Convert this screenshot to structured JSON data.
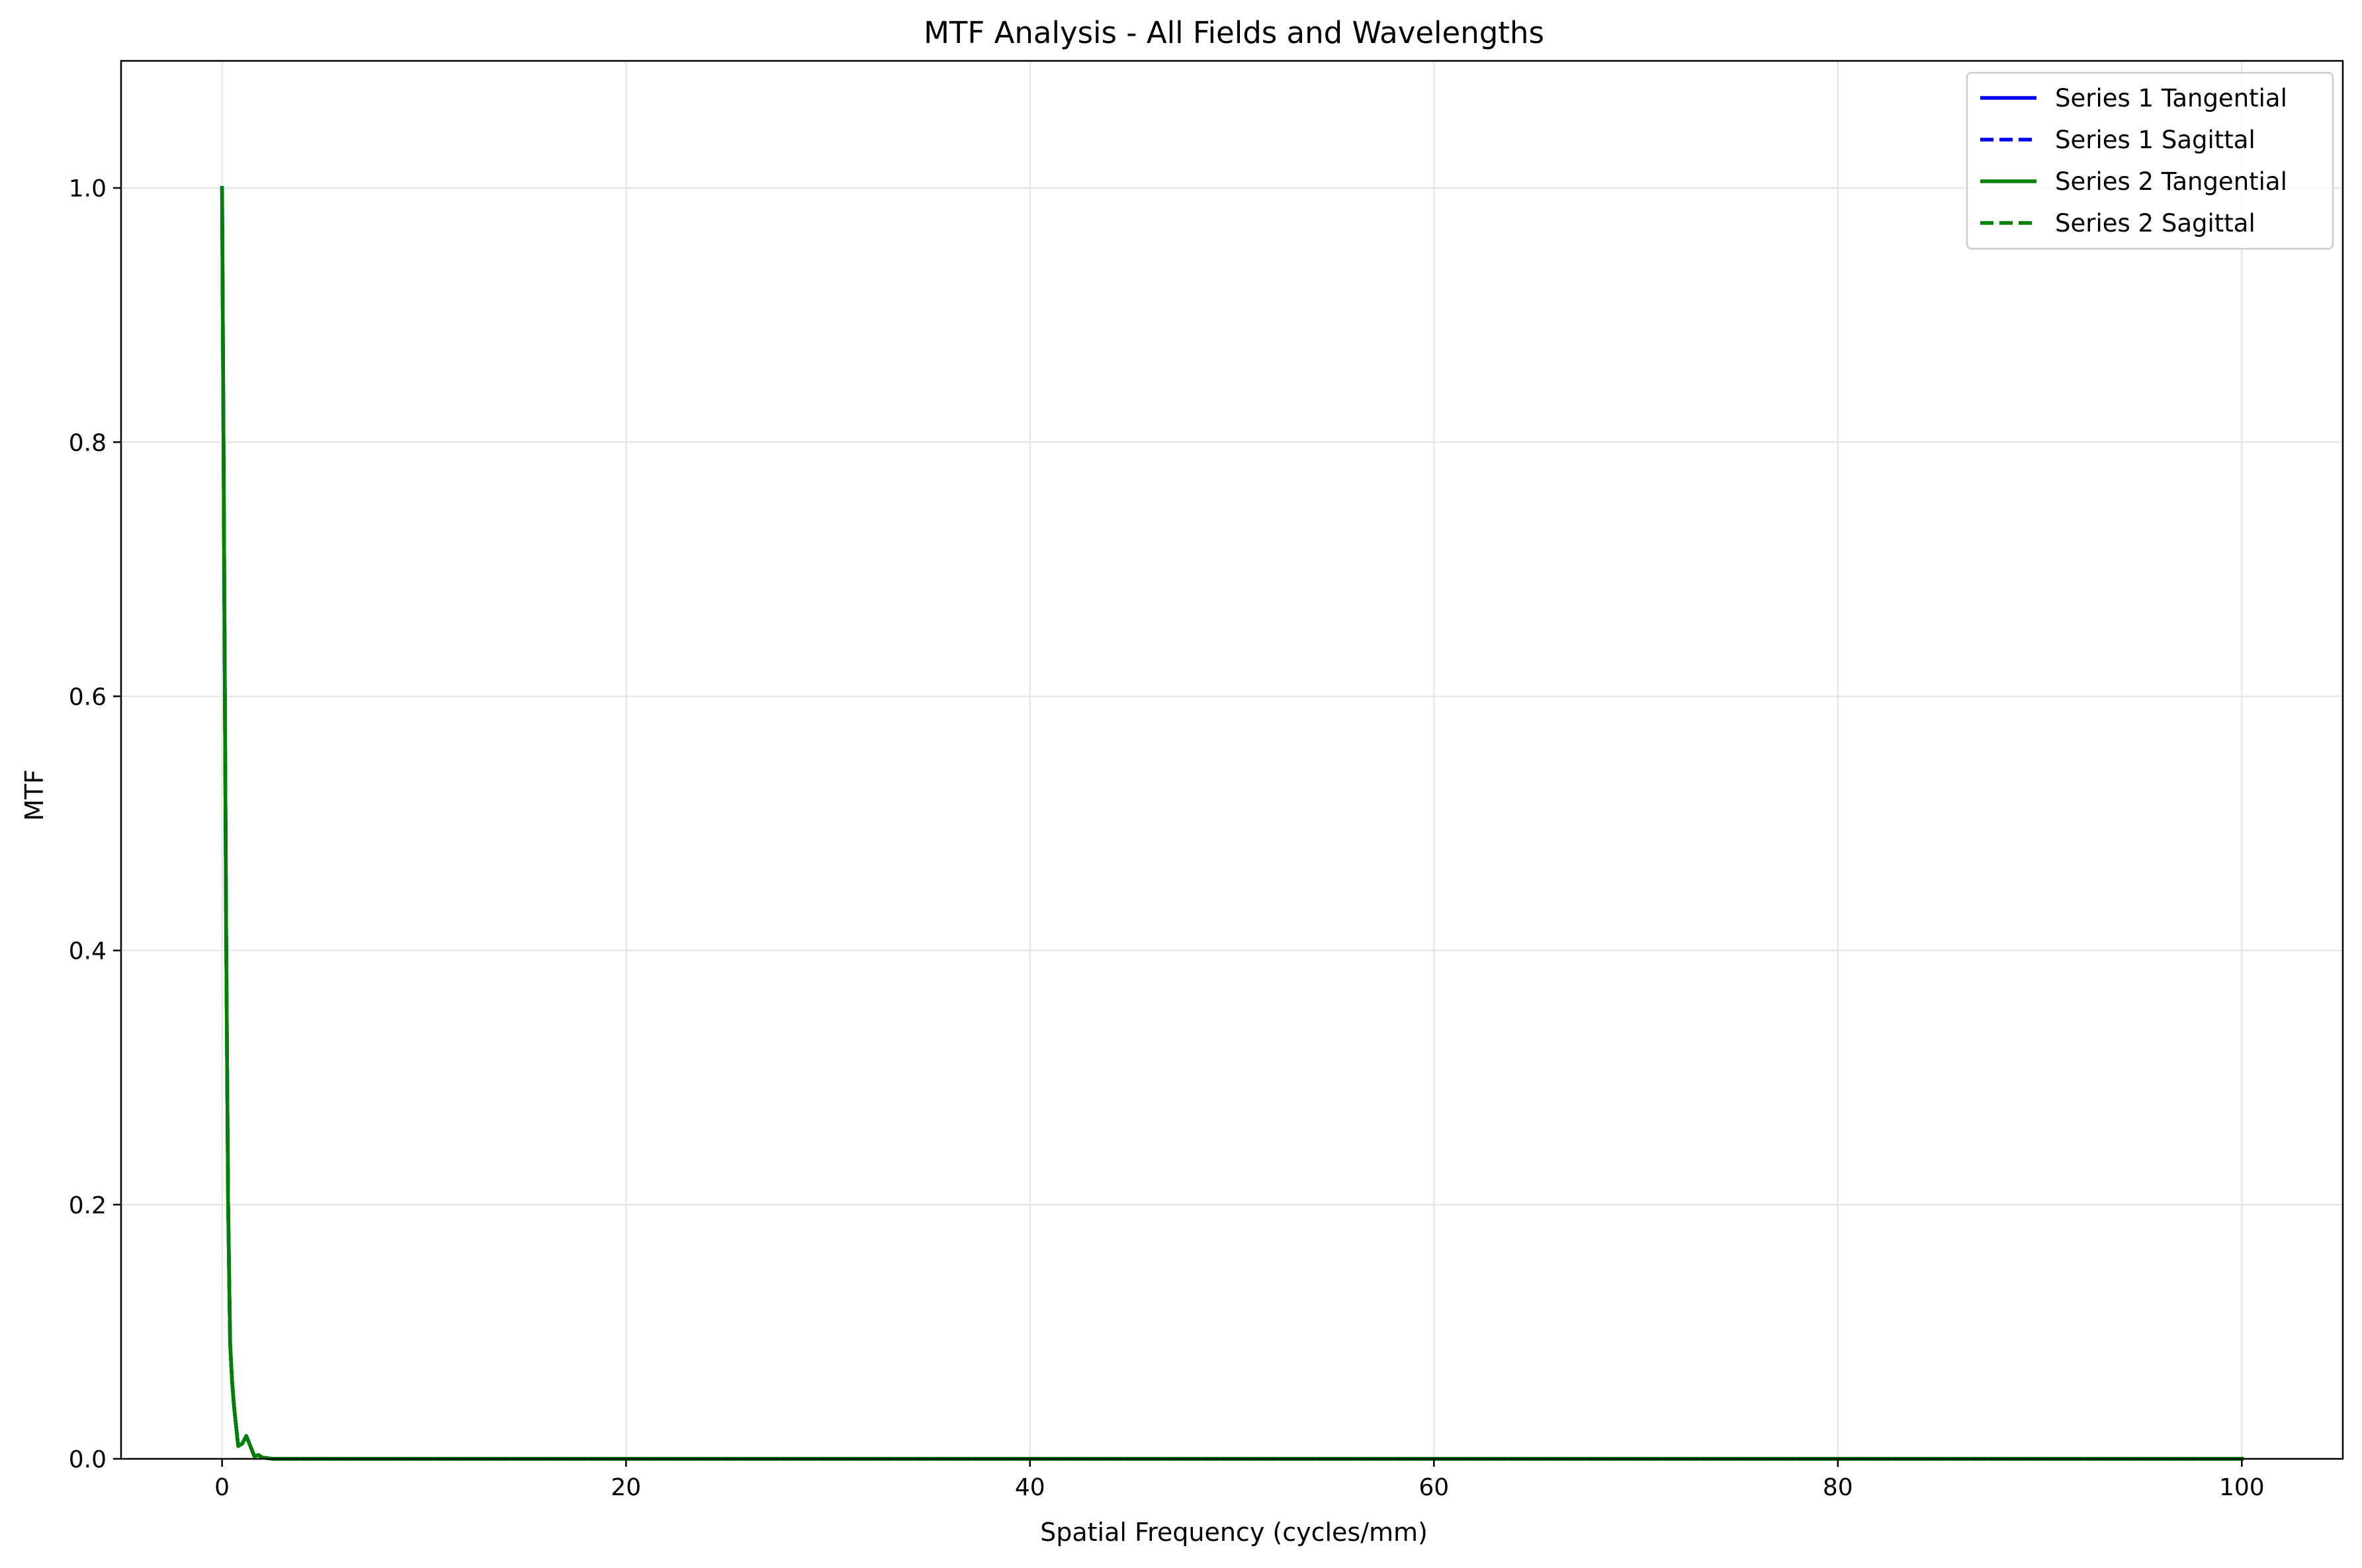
{
  "chart_data": {
    "type": "line",
    "title": "MTF Analysis - All Fields and Wavelengths",
    "xlabel": "Spatial Frequency (cycles/mm)",
    "ylabel": "MTF",
    "xlim": [
      -5,
      105
    ],
    "ylim": [
      0,
      1.1
    ],
    "x_ticks": [
      0,
      20,
      40,
      60,
      80,
      100
    ],
    "y_ticks": [
      0.0,
      0.2,
      0.4,
      0.6,
      0.8,
      1.0
    ],
    "x_tick_labels": [
      "0",
      "20",
      "40",
      "60",
      "80",
      "100"
    ],
    "y_tick_labels": [
      "0.0",
      "0.2",
      "0.4",
      "0.6",
      "0.8",
      "1.0"
    ],
    "grid": true,
    "legend_position": "top-right",
    "series": [
      {
        "name": "Series 1 Tangential",
        "color": "#0000ff",
        "dash": "solid",
        "x": [
          0,
          0.1,
          0.2,
          0.3,
          0.4,
          0.5,
          0.6,
          0.8,
          1.0,
          1.2,
          1.4,
          1.6,
          1.8,
          2.0,
          2.5,
          3,
          5,
          10,
          20,
          40,
          60,
          80,
          100
        ],
        "y": [
          1.0,
          0.72,
          0.42,
          0.2,
          0.09,
          0.06,
          0.04,
          0.01,
          0.012,
          0.018,
          0.01,
          0.002,
          0.003,
          0.001,
          0.0,
          0.0,
          0.0,
          0.0,
          0.0,
          0.0,
          0.0,
          0.0,
          0.0
        ]
      },
      {
        "name": "Series 1 Sagittal",
        "color": "#0000ff",
        "dash": "dashed",
        "x": [
          0,
          0.1,
          0.2,
          0.3,
          0.4,
          0.5,
          0.6,
          0.8,
          1.0,
          1.2,
          1.4,
          1.6,
          1.8,
          2.0,
          2.5,
          3,
          5,
          10,
          20,
          40,
          60,
          80,
          100
        ],
        "y": [
          1.0,
          0.72,
          0.42,
          0.2,
          0.09,
          0.06,
          0.04,
          0.01,
          0.012,
          0.018,
          0.01,
          0.002,
          0.003,
          0.001,
          0.0,
          0.0,
          0.0,
          0.0,
          0.0,
          0.0,
          0.0,
          0.0,
          0.0
        ]
      },
      {
        "name": "Series 2 Tangential",
        "color": "#008000",
        "dash": "solid",
        "x": [
          0,
          0.1,
          0.2,
          0.3,
          0.4,
          0.5,
          0.6,
          0.8,
          1.0,
          1.2,
          1.4,
          1.6,
          1.8,
          2.0,
          2.5,
          3,
          5,
          10,
          20,
          40,
          60,
          80,
          100
        ],
        "y": [
          1.0,
          0.72,
          0.42,
          0.2,
          0.09,
          0.06,
          0.04,
          0.01,
          0.012,
          0.018,
          0.01,
          0.002,
          0.003,
          0.001,
          0.0,
          0.0,
          0.0,
          0.0,
          0.0,
          0.0,
          0.0,
          0.0,
          0.0
        ]
      },
      {
        "name": "Series 2 Sagittal",
        "color": "#008000",
        "dash": "dashed",
        "x": [
          0,
          0.1,
          0.2,
          0.3,
          0.4,
          0.5,
          0.6,
          0.8,
          1.0,
          1.2,
          1.4,
          1.6,
          1.8,
          2.0,
          2.5,
          3,
          5,
          10,
          20,
          40,
          60,
          80,
          100
        ],
        "y": [
          1.0,
          0.72,
          0.42,
          0.2,
          0.09,
          0.06,
          0.04,
          0.01,
          0.012,
          0.018,
          0.01,
          0.002,
          0.003,
          0.001,
          0.0,
          0.0,
          0.0,
          0.0,
          0.0,
          0.0,
          0.0,
          0.0,
          0.0
        ]
      }
    ]
  }
}
